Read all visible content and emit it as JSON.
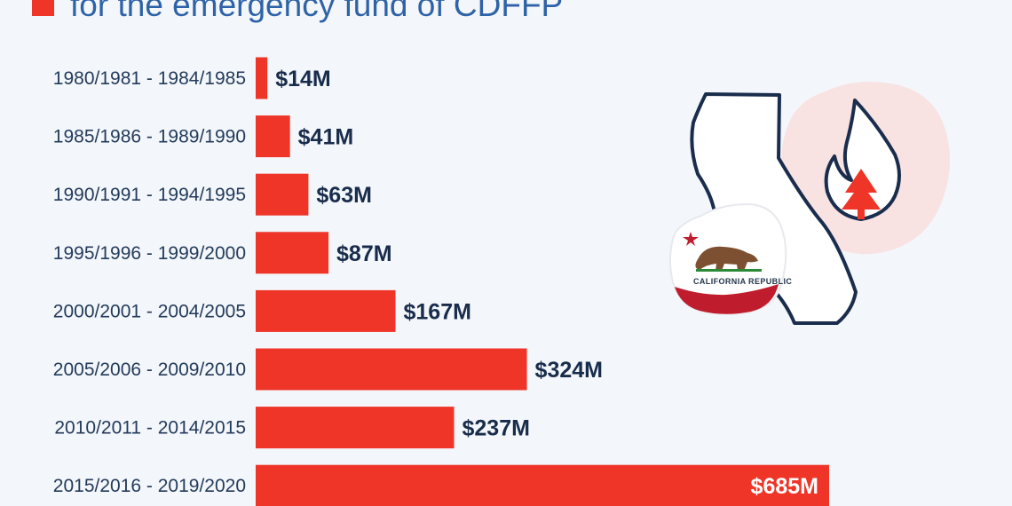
{
  "header": {
    "subtitle": "for the emergency fund of CDFFP",
    "legend_color": "#ee3528"
  },
  "chart_data": {
    "type": "bar",
    "orientation": "horizontal",
    "categories": [
      "1980/1981 - 1984/1985",
      "1985/1986 - 1989/1990",
      "1990/1991 - 1994/1995",
      "1995/1996 - 1999/2000",
      "2000/2001 - 2004/2005",
      "2005/2006 - 2009/2010",
      "2010/2011 - 2014/2015",
      "2015/2016 - 2019/2020"
    ],
    "values": [
      14,
      41,
      63,
      87,
      167,
      324,
      237,
      685
    ],
    "value_labels": [
      "$14M",
      "$41M",
      "$63M",
      "$87M",
      "$167M",
      "$324M",
      "$237M",
      "$685M"
    ],
    "xlim": [
      0,
      685
    ],
    "grid": false,
    "legend": "top-left",
    "bar_color": "#ee3528"
  },
  "illustration": {
    "flag_text": "CALIFORNIA REPUBLIC",
    "icons": [
      "california-map-icon",
      "wildfire-tree-icon",
      "california-flag-icon"
    ],
    "colors": {
      "outline": "#1a2d4d",
      "accent": "#ee3528",
      "hex_background": "#f8dfe0"
    }
  }
}
